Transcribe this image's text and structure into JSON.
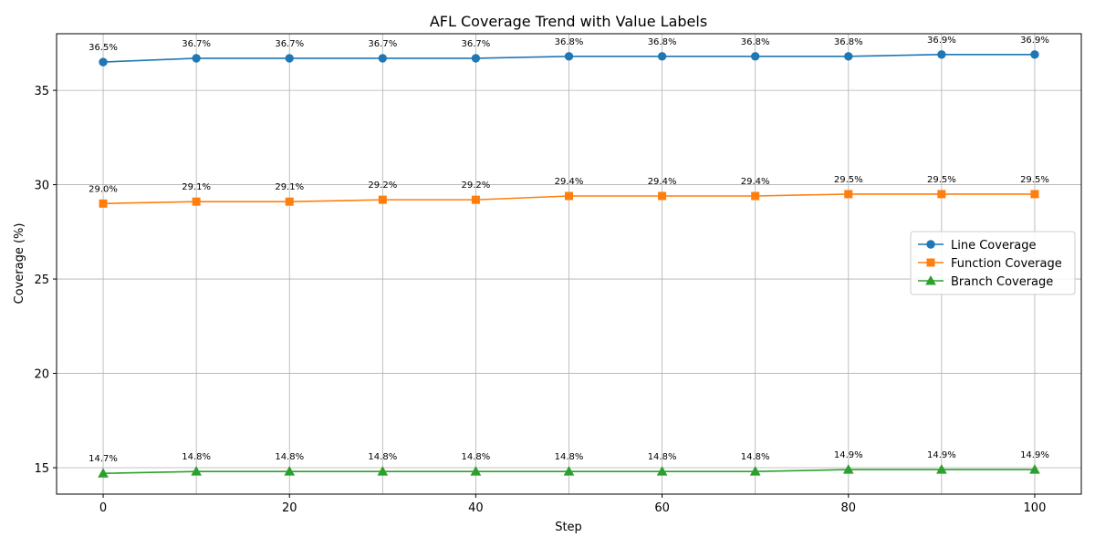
{
  "chart_data": {
    "type": "line",
    "title": "AFL Coverage Trend with Value Labels",
    "xlabel": "Step",
    "ylabel": "Coverage (%)",
    "x": [
      0,
      10,
      20,
      30,
      40,
      50,
      60,
      70,
      80,
      90,
      100
    ],
    "xlim": [
      -5,
      105
    ],
    "ylim": [
      13.6,
      38.0
    ],
    "xticks": [
      0,
      20,
      40,
      60,
      80,
      100
    ],
    "yticks": [
      15,
      20,
      25,
      30,
      35
    ],
    "grid": true,
    "legend_position": "center-right",
    "label_suffix": "%",
    "series": [
      {
        "name": "Line Coverage",
        "color": "#1f77b4",
        "marker": "circle",
        "values": [
          36.5,
          36.7,
          36.7,
          36.7,
          36.7,
          36.8,
          36.8,
          36.8,
          36.8,
          36.9,
          36.9
        ]
      },
      {
        "name": "Function Coverage",
        "color": "#ff7f0e",
        "marker": "square",
        "values": [
          29.0,
          29.1,
          29.1,
          29.2,
          29.2,
          29.4,
          29.4,
          29.4,
          29.5,
          29.5,
          29.5
        ]
      },
      {
        "name": "Branch Coverage",
        "color": "#2ca02c",
        "marker": "triangle",
        "values": [
          14.7,
          14.8,
          14.8,
          14.8,
          14.8,
          14.8,
          14.8,
          14.8,
          14.9,
          14.9,
          14.9
        ]
      }
    ]
  }
}
